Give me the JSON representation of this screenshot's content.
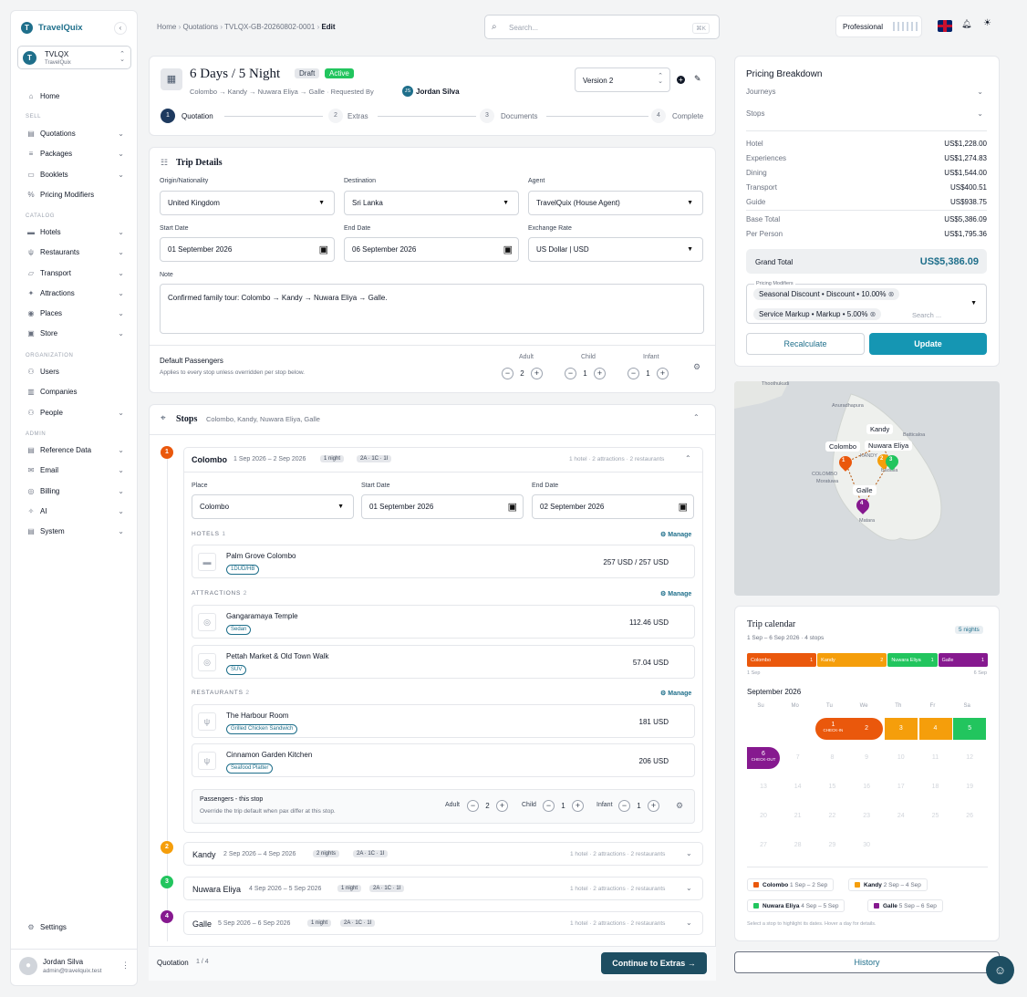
{
  "app": {
    "name": "TravelQuix"
  },
  "org": {
    "name": "TVLQX",
    "sub": "TravelQuix"
  },
  "sidebar": {
    "home": "Home",
    "sec_sell": "SELL",
    "quotations": "Quotations",
    "packages": "Packages",
    "booklets": "Booklets",
    "pricing_modifiers": "Pricing Modifiers",
    "sec_catalog": "CATALOG",
    "hotels": "Hotels",
    "restaurants": "Restaurants",
    "transport": "Transport",
    "attractions": "Attractions",
    "places": "Places",
    "store": "Store",
    "sec_org": "ORGANIZATION",
    "users": "Users",
    "companies": "Companies",
    "people": "People",
    "sec_admin": "ADMIN",
    "reference_data": "Reference Data",
    "email": "Email",
    "billing": "Billing",
    "ai": "AI",
    "system": "System",
    "settings": "Settings",
    "user_name": "Jordan Silva",
    "user_email": "admin@travelquix.test"
  },
  "topbar": {
    "crumbs": [
      "Home",
      "Quotations",
      "TVLQX-GB-20260802-0001",
      "Edit"
    ],
    "search_placeholder": "Search...",
    "search_kbd": "⌘K",
    "plan": "Professional"
  },
  "quote": {
    "title": "6 Days / 5 Night",
    "badge_draft": "Draft",
    "badge_active": "Active",
    "route": "Colombo → Kandy → Nuwara Eliya → Galle",
    "requested_by_label": "Requested By",
    "requester_initials": "JS",
    "requester": "Jordan Silva",
    "version": "Version 2",
    "steps": [
      {
        "n": "1",
        "label": "Quotation"
      },
      {
        "n": "2",
        "label": "Extras"
      },
      {
        "n": "3",
        "label": "Documents"
      },
      {
        "n": "4",
        "label": "Complete"
      }
    ]
  },
  "trip": {
    "heading": "Trip Details",
    "origin_label": "Origin/Nationality",
    "origin": "United Kingdom",
    "destination_label": "Destination",
    "destination": "Sri Lanka",
    "agent_label": "Agent",
    "agent": "TravelQuix (House Agent)",
    "start_label": "Start Date",
    "start": "01 September 2026",
    "end_label": "End Date",
    "end": "06 September 2026",
    "fx_label": "Exchange Rate",
    "fx": "US Dollar | USD",
    "note_label": "Note",
    "note": "Confirmed family tour: Colombo → Kandy → Nuwara Eliya → Galle.",
    "pax_title": "Default Passengers",
    "pax_sub": "Applies to every stop unless overridden per stop below.",
    "adult_label": "Adult",
    "adult": "2",
    "child_label": "Child",
    "child": "1",
    "infant_label": "Infant",
    "infant": "1"
  },
  "stops": {
    "heading": "Stops",
    "summary": "Colombo, Kandy, Nuwara Eliya, Galle",
    "colombo": {
      "n": "1",
      "name": "Colombo",
      "dates": "1 Sep 2026 – 2 Sep 2026",
      "nights": "1 night",
      "pax": "2A · 1C · 1I",
      "summary": "1 hotel · 2 attractions · 2 restaurants",
      "place_label": "Place",
      "place": "Colombo",
      "start_label": "Start Date",
      "start": "01 September 2026",
      "end_label": "End Date",
      "end": "02 September 2026",
      "hotels_label": "HOTELS",
      "hotels_count": "1",
      "attractions_label": "ATTRACTIONS",
      "attractions_count": "2",
      "restaurants_label": "RESTAURANTS",
      "restaurants_count": "2",
      "manage": "Manage",
      "hotel": {
        "name": "Palm Grove Colombo",
        "chip": "1DUD/HB",
        "price": "257 USD / 257 USD"
      },
      "attr1": {
        "name": "Gangaramaya Temple",
        "chip": "Sedan",
        "price": "112.46 USD"
      },
      "attr2": {
        "name": "Pettah Market & Old Town Walk",
        "chip": "SUV",
        "price": "57.04 USD"
      },
      "rest1": {
        "name": "The Harbour Room",
        "chip": "Grilled Chicken Sandwich",
        "price": "181 USD"
      },
      "rest2": {
        "name": "Cinnamon Garden Kitchen",
        "chip": "Seafood Platter",
        "price": "206 USD"
      },
      "pax_title": "Passengers - this stop",
      "pax_sub": "Override the trip default when pax differ at this stop.",
      "adult_label": "Adult",
      "adult": "2",
      "child_label": "Child",
      "child": "1",
      "infant_label": "Infant",
      "infant": "1"
    },
    "kandy": {
      "n": "2",
      "name": "Kandy",
      "dates": "2 Sep 2026 – 4 Sep 2026",
      "nights": "2 nights",
      "pax": "2A · 1C · 1I",
      "summary": "1 hotel · 2 attractions · 2 restaurants"
    },
    "nuwara": {
      "n": "3",
      "name": "Nuwara Eliya",
      "dates": "4 Sep 2026 – 5 Sep 2026",
      "nights": "1 night",
      "pax": "2A · 1C · 1I",
      "summary": "1 hotel · 2 attractions · 2 restaurants"
    },
    "galle": {
      "n": "4",
      "name": "Galle",
      "dates": "5 Sep 2026 – 6 Sep 2026",
      "nights": "1 night",
      "pax": "2A · 1C · 1I",
      "summary": "1 hotel · 2 attractions · 2 restaurants"
    }
  },
  "footer": {
    "label": "Quotation",
    "progress": "1 / 4",
    "continue": "Continue to Extras"
  },
  "pricing": {
    "heading": "Pricing Breakdown",
    "journeys": "Journeys",
    "stops": "Stops",
    "rows": [
      {
        "label": "Hotel",
        "value": "US$1,228.00"
      },
      {
        "label": "Experiences",
        "value": "US$1,274.83"
      },
      {
        "label": "Dining",
        "value": "US$1,544.00"
      },
      {
        "label": "Transport",
        "value": "US$400.51"
      },
      {
        "label": "Guide",
        "value": "US$938.75"
      }
    ],
    "base_label": "Base Total",
    "base": "US$5,386.09",
    "pp_label": "Per Person",
    "pp": "US$1,795.36",
    "grand_label": "Grand Total",
    "grand": "US$5,386.09",
    "modifiers_label": "Pricing Modifiers",
    "mod1": "Seasonal Discount • Discount • 10.00%",
    "mod2": "Service Markup • Markup • 5.00%",
    "mod_search": "Search ...",
    "recalc": "Recalculate",
    "update": "Update"
  },
  "map": {
    "labels": {
      "thoothukudi": "Thoothukudi",
      "anuradhapura": "Anuradhapura",
      "kandy": "Kandy",
      "batticaloa": "Batticaloa",
      "colombo": "Colombo",
      "nuwara": "Nuwara Eliya",
      "kandy_small": "KANDY",
      "colombo_small": "COLOMBO",
      "moratuwa": "Moratuwa",
      "badulla": "Badulla",
      "galle": "Galle",
      "matara": "Matara"
    },
    "pins": [
      "1",
      "2",
      "3",
      "4"
    ]
  },
  "calendar": {
    "heading": "Trip calendar",
    "sub": "1 Sep – 6 Sep 2026 · 4 stops",
    "nights_badge": "5 nights",
    "bar": [
      {
        "name": "Colombo",
        "n": "1",
        "color": "#ea580c"
      },
      {
        "name": "Kandy",
        "n": "2",
        "color": "#f59e0b"
      },
      {
        "name": "Nuwara Eliya",
        "n": "1",
        "color": "#22c55e"
      },
      {
        "name": "Galle",
        "n": "1",
        "color": "#86198f"
      }
    ],
    "bar_start": "1 Sep",
    "bar_end": "6 Sep",
    "month": "September 2026",
    "dow": [
      "Su",
      "Mo",
      "Tu",
      "We",
      "Th",
      "Fr",
      "Sa"
    ],
    "checkin": "CHECK-IN",
    "checkout": "CHECK-OUT",
    "days": [
      "1",
      "2",
      "3",
      "4",
      "5",
      "6",
      "7",
      "8",
      "9",
      "10",
      "11",
      "12",
      "13",
      "14",
      "15",
      "16",
      "17",
      "18",
      "19",
      "20",
      "21",
      "22",
      "23",
      "24",
      "25",
      "26",
      "27",
      "28",
      "29",
      "30"
    ],
    "legend": [
      {
        "name": "Colombo",
        "dates": "1 Sep – 2 Sep",
        "color": "#ea580c"
      },
      {
        "name": "Kandy",
        "dates": "2 Sep – 4 Sep",
        "color": "#f59e0b"
      },
      {
        "name": "Nuwara Eliya",
        "dates": "4 Sep – 5 Sep",
        "color": "#22c55e"
      },
      {
        "name": "Galle",
        "dates": "5 Sep – 6 Sep",
        "color": "#86198f"
      }
    ],
    "hint": "Select a stop to highlight its dates. Hover a day for details."
  },
  "history": "History",
  "colors": {
    "accent": "#1f6f8b",
    "teal": "#0e9bb5",
    "active": "#22c55e"
  }
}
